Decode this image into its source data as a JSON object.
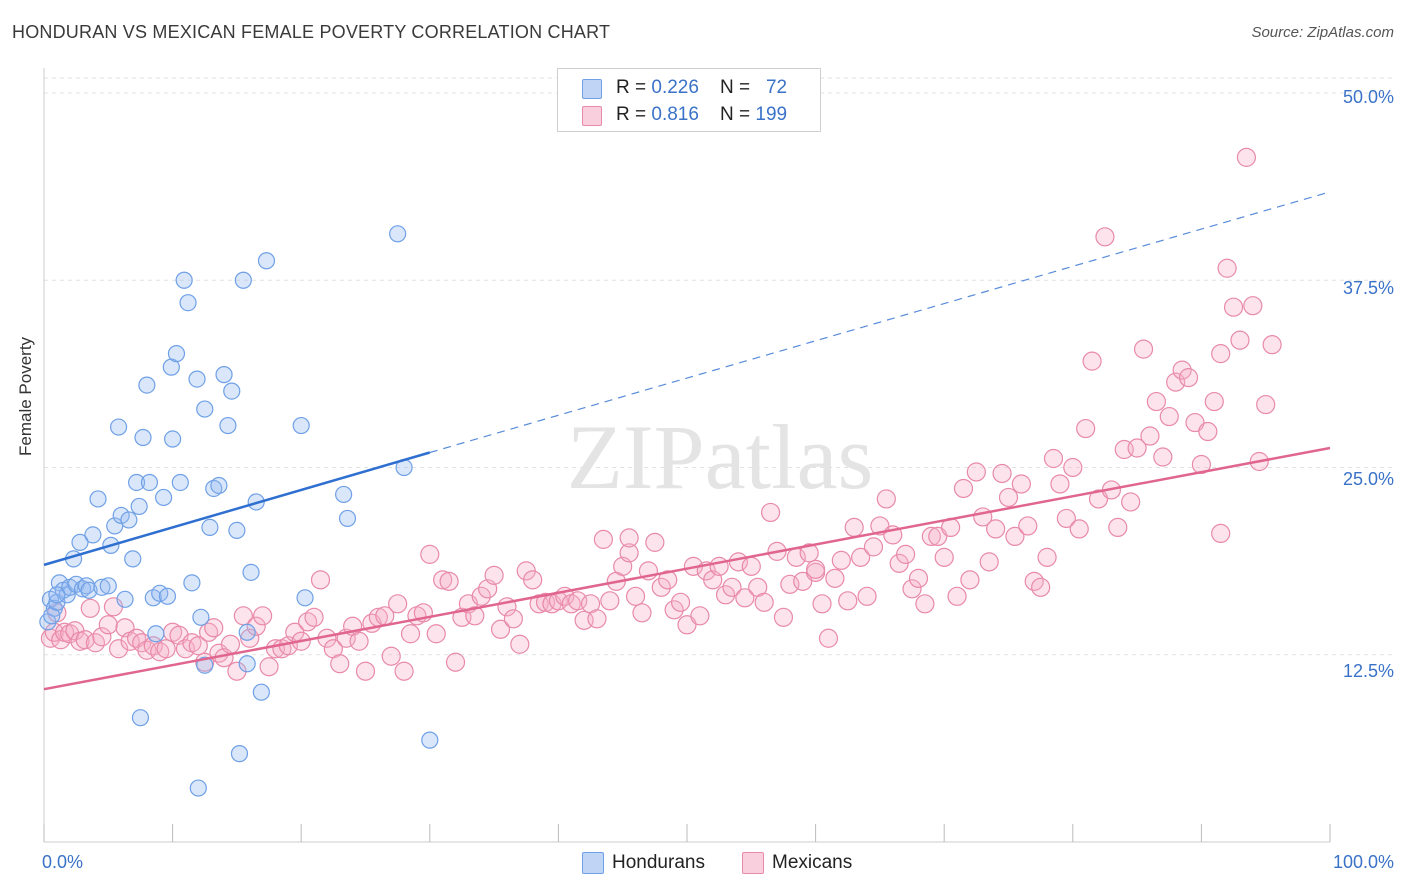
{
  "title": "HONDURAN VS MEXICAN FEMALE POVERTY CORRELATION CHART",
  "source": "Source: ZipAtlas.com",
  "watermark": "ZIPatlas",
  "colors": {
    "blue": "#6fa0e6",
    "blue_fill": "rgba(150,185,240,0.35)",
    "blue_line": "#2f6fd0",
    "pink": "#e88aa8",
    "pink_fill": "rgba(245,175,200,0.35)",
    "pink_line": "#e0668f",
    "tick_text": "#3a72c8"
  },
  "legend": {
    "rows": [
      {
        "r_label": "R = ",
        "r_value": "0.226",
        "n_label": "N = ",
        "n_value": "72",
        "series": "Hondurans"
      },
      {
        "r_label": "R = ",
        "r_value": "0.816",
        "n_label": "N = ",
        "n_value": "199",
        "series": "Mexicans"
      }
    ]
  },
  "bottom_legend": [
    "Hondurans",
    "Mexicans"
  ],
  "chart_data": {
    "type": "scatter",
    "title": "HONDURAN VS MEXICAN FEMALE POVERTY CORRELATION CHART",
    "xlabel": "",
    "ylabel": "Female Poverty",
    "xlim": [
      0,
      100
    ],
    "ylim": [
      0,
      51
    ],
    "x_tick_labels": [
      "0.0%",
      "100.0%"
    ],
    "y_ticks": [
      12.5,
      25.0,
      37.5,
      50.0
    ],
    "y_tick_labels": [
      "12.5%",
      "25.0%",
      "37.5%",
      "50.0%"
    ],
    "grid": true,
    "legend_placement": "top-center",
    "series": [
      {
        "name": "Hondurans",
        "r": 0.226,
        "n": 72,
        "trend": {
          "x0": 0,
          "y0": 18.5,
          "x1": 30,
          "y1": 26.0,
          "dash_to_x": 100,
          "dash_to_y": 43.4
        },
        "points": [
          [
            0.3,
            14.7
          ],
          [
            0.5,
            16.2
          ],
          [
            0.8,
            15.6
          ],
          [
            0.6,
            15.1
          ],
          [
            1.0,
            16.0
          ],
          [
            1.2,
            17.3
          ],
          [
            1.5,
            16.8
          ],
          [
            1.8,
            16.5
          ],
          [
            2.0,
            17.0
          ],
          [
            2.3,
            18.9
          ],
          [
            2.5,
            17.2
          ],
          [
            2.8,
            20.0
          ],
          [
            3.0,
            16.9
          ],
          [
            3.3,
            17.1
          ],
          [
            3.5,
            16.8
          ],
          [
            3.8,
            20.5
          ],
          [
            4.2,
            22.9
          ],
          [
            4.5,
            17.0
          ],
          [
            5.0,
            17.1
          ],
          [
            5.2,
            19.8
          ],
          [
            5.5,
            21.1
          ],
          [
            5.8,
            27.7
          ],
          [
            6.0,
            21.8
          ],
          [
            6.3,
            16.2
          ],
          [
            6.6,
            21.5
          ],
          [
            6.9,
            18.9
          ],
          [
            7.2,
            24.0
          ],
          [
            7.4,
            22.4
          ],
          [
            7.7,
            27.0
          ],
          [
            8.0,
            30.5
          ],
          [
            8.2,
            24.0
          ],
          [
            8.5,
            16.3
          ],
          [
            8.7,
            13.9
          ],
          [
            9.0,
            16.6
          ],
          [
            9.3,
            23.0
          ],
          [
            9.6,
            16.4
          ],
          [
            9.9,
            31.7
          ],
          [
            10.0,
            26.9
          ],
          [
            10.3,
            32.6
          ],
          [
            10.6,
            24.0
          ],
          [
            10.9,
            37.5
          ],
          [
            11.2,
            36.0
          ],
          [
            11.5,
            17.3
          ],
          [
            11.9,
            30.9
          ],
          [
            12.2,
            15.0
          ],
          [
            12.5,
            28.9
          ],
          [
            12.9,
            21.0
          ],
          [
            13.2,
            23.6
          ],
          [
            13.6,
            23.8
          ],
          [
            14.0,
            31.2
          ],
          [
            14.3,
            27.8
          ],
          [
            14.6,
            30.1
          ],
          [
            15.0,
            20.8
          ],
          [
            15.5,
            37.5
          ],
          [
            15.8,
            14.0
          ],
          [
            16.1,
            18.0
          ],
          [
            16.5,
            22.7
          ],
          [
            16.9,
            10.0
          ],
          [
            17.3,
            38.8
          ],
          [
            20.0,
            27.8
          ],
          [
            20.3,
            16.3
          ],
          [
            23.3,
            23.2
          ],
          [
            23.6,
            21.6
          ],
          [
            27.5,
            40.6
          ],
          [
            28.0,
            25.0
          ],
          [
            30.0,
            6.8
          ],
          [
            7.5,
            8.3
          ],
          [
            12.0,
            3.6
          ],
          [
            15.2,
            5.9
          ],
          [
            12.5,
            11.8
          ],
          [
            15.8,
            11.9
          ],
          [
            1.0,
            16.5
          ]
        ]
      },
      {
        "name": "Mexicans",
        "r": 0.816,
        "n": 199,
        "trend": {
          "x0": 0,
          "y0": 10.2,
          "x1": 100,
          "y1": 26.3
        },
        "points": [
          [
            0.5,
            13.6
          ],
          [
            0.8,
            14.0
          ],
          [
            1.0,
            15.3
          ],
          [
            1.3,
            13.5
          ],
          [
            1.6,
            14.0
          ],
          [
            2.0,
            13.9
          ],
          [
            2.4,
            14.1
          ],
          [
            2.8,
            13.4
          ],
          [
            3.2,
            13.5
          ],
          [
            3.6,
            15.6
          ],
          [
            4.0,
            13.3
          ],
          [
            4.5,
            13.7
          ],
          [
            5.0,
            14.5
          ],
          [
            5.4,
            15.7
          ],
          [
            5.8,
            12.9
          ],
          [
            6.3,
            14.3
          ],
          [
            6.7,
            13.4
          ],
          [
            7.2,
            13.6
          ],
          [
            7.6,
            13.3
          ],
          [
            8.0,
            12.8
          ],
          [
            8.5,
            13.1
          ],
          [
            9.0,
            12.7
          ],
          [
            9.5,
            12.9
          ],
          [
            10.0,
            14.0
          ],
          [
            10.5,
            13.8
          ],
          [
            11.0,
            12.9
          ],
          [
            11.5,
            13.3
          ],
          [
            12.0,
            13.1
          ],
          [
            12.5,
            12.0
          ],
          [
            12.8,
            14.0
          ],
          [
            13.2,
            14.3
          ],
          [
            13.6,
            12.6
          ],
          [
            14.0,
            12.3
          ],
          [
            14.5,
            13.2
          ],
          [
            15.0,
            11.4
          ],
          [
            15.5,
            15.1
          ],
          [
            16.0,
            13.6
          ],
          [
            16.5,
            14.4
          ],
          [
            17.0,
            15.1
          ],
          [
            17.5,
            11.7
          ],
          [
            18.0,
            12.9
          ],
          [
            18.5,
            12.9
          ],
          [
            19.0,
            13.1
          ],
          [
            19.5,
            14.0
          ],
          [
            20.0,
            13.4
          ],
          [
            20.5,
            14.7
          ],
          [
            21.0,
            15.0
          ],
          [
            21.5,
            17.5
          ],
          [
            22.0,
            13.6
          ],
          [
            22.5,
            12.9
          ],
          [
            23.0,
            11.9
          ],
          [
            23.5,
            13.6
          ],
          [
            24.0,
            14.4
          ],
          [
            24.5,
            13.4
          ],
          [
            25.0,
            11.4
          ],
          [
            25.5,
            14.6
          ],
          [
            26.0,
            15.0
          ],
          [
            26.5,
            15.1
          ],
          [
            27.0,
            12.4
          ],
          [
            27.5,
            15.9
          ],
          [
            28.0,
            11.4
          ],
          [
            28.5,
            13.9
          ],
          [
            29.0,
            15.1
          ],
          [
            29.5,
            15.3
          ],
          [
            30.0,
            19.2
          ],
          [
            30.5,
            13.9
          ],
          [
            31.0,
            17.5
          ],
          [
            31.5,
            17.4
          ],
          [
            32.0,
            12.0
          ],
          [
            32.5,
            15.0
          ],
          [
            33.0,
            15.9
          ],
          [
            33.5,
            15.1
          ],
          [
            34.0,
            16.4
          ],
          [
            34.5,
            16.9
          ],
          [
            35.0,
            17.8
          ],
          [
            35.5,
            14.2
          ],
          [
            36.0,
            15.7
          ],
          [
            36.5,
            14.9
          ],
          [
            37.0,
            13.2
          ],
          [
            37.5,
            18.1
          ],
          [
            38.0,
            17.5
          ],
          [
            38.5,
            15.9
          ],
          [
            39.0,
            16.0
          ],
          [
            39.5,
            15.9
          ],
          [
            40.0,
            16.1
          ],
          [
            40.5,
            16.4
          ],
          [
            41.0,
            15.9
          ],
          [
            41.5,
            16.1
          ],
          [
            42.0,
            14.8
          ],
          [
            42.5,
            15.9
          ],
          [
            43.0,
            14.9
          ],
          [
            43.5,
            20.2
          ],
          [
            44.0,
            16.1
          ],
          [
            44.5,
            17.4
          ],
          [
            45.0,
            18.4
          ],
          [
            45.5,
            19.3
          ],
          [
            46.0,
            16.4
          ],
          [
            46.5,
            15.3
          ],
          [
            47.0,
            18.1
          ],
          [
            47.5,
            20.0
          ],
          [
            48.0,
            17.0
          ],
          [
            48.5,
            17.5
          ],
          [
            49.0,
            15.5
          ],
          [
            49.5,
            16.0
          ],
          [
            50.0,
            14.5
          ],
          [
            50.5,
            18.4
          ],
          [
            51.0,
            15.1
          ],
          [
            51.5,
            18.1
          ],
          [
            52.0,
            17.5
          ],
          [
            52.5,
            18.4
          ],
          [
            53.0,
            16.5
          ],
          [
            53.5,
            17.0
          ],
          [
            54.0,
            18.7
          ],
          [
            54.5,
            16.3
          ],
          [
            55.0,
            18.4
          ],
          [
            55.5,
            17.0
          ],
          [
            56.0,
            16.0
          ],
          [
            56.5,
            22.0
          ],
          [
            57.0,
            19.4
          ],
          [
            57.5,
            15.0
          ],
          [
            58.0,
            17.2
          ],
          [
            58.5,
            19.0
          ],
          [
            59.0,
            17.4
          ],
          [
            59.5,
            19.3
          ],
          [
            60.0,
            18.0
          ],
          [
            60.5,
            15.9
          ],
          [
            61.0,
            13.6
          ],
          [
            61.5,
            17.6
          ],
          [
            62.0,
            18.8
          ],
          [
            62.5,
            16.1
          ],
          [
            63.0,
            21.0
          ],
          [
            63.5,
            19.0
          ],
          [
            64.0,
            16.4
          ],
          [
            64.5,
            19.7
          ],
          [
            65.0,
            21.1
          ],
          [
            65.5,
            22.9
          ],
          [
            66.0,
            20.5
          ],
          [
            66.5,
            18.6
          ],
          [
            67.0,
            19.2
          ],
          [
            67.5,
            16.9
          ],
          [
            68.0,
            17.6
          ],
          [
            68.5,
            15.9
          ],
          [
            69.0,
            20.4
          ],
          [
            69.5,
            20.4
          ],
          [
            70.0,
            19.0
          ],
          [
            70.5,
            21.0
          ],
          [
            71.0,
            16.4
          ],
          [
            71.5,
            23.6
          ],
          [
            72.0,
            17.5
          ],
          [
            72.5,
            24.7
          ],
          [
            73.0,
            21.7
          ],
          [
            73.5,
            18.7
          ],
          [
            74.0,
            20.9
          ],
          [
            74.5,
            24.6
          ],
          [
            75.0,
            23.0
          ],
          [
            75.5,
            20.4
          ],
          [
            76.0,
            23.9
          ],
          [
            76.5,
            21.1
          ],
          [
            77.0,
            17.4
          ],
          [
            77.5,
            17.0
          ],
          [
            78.0,
            19.0
          ],
          [
            78.5,
            25.6
          ],
          [
            79.0,
            23.9
          ],
          [
            79.5,
            21.6
          ],
          [
            80.0,
            25.0
          ],
          [
            80.5,
            20.9
          ],
          [
            81.0,
            27.6
          ],
          [
            81.5,
            32.1
          ],
          [
            82.0,
            22.9
          ],
          [
            82.5,
            40.4
          ],
          [
            83.0,
            23.5
          ],
          [
            83.5,
            21.0
          ],
          [
            84.0,
            26.2
          ],
          [
            84.5,
            22.7
          ],
          [
            85.0,
            26.3
          ],
          [
            85.5,
            32.9
          ],
          [
            86.0,
            27.1
          ],
          [
            86.5,
            29.4
          ],
          [
            87.0,
            25.7
          ],
          [
            87.5,
            28.4
          ],
          [
            88.0,
            30.7
          ],
          [
            88.5,
            31.5
          ],
          [
            89.0,
            31.0
          ],
          [
            89.5,
            28.0
          ],
          [
            90.0,
            25.2
          ],
          [
            90.5,
            27.4
          ],
          [
            91.0,
            29.4
          ],
          [
            91.5,
            32.6
          ],
          [
            92.0,
            38.3
          ],
          [
            92.5,
            35.7
          ],
          [
            93.0,
            33.5
          ],
          [
            93.5,
            45.7
          ],
          [
            94.0,
            35.8
          ],
          [
            94.5,
            25.4
          ],
          [
            95.0,
            29.2
          ],
          [
            95.5,
            33.2
          ],
          [
            91.5,
            20.6
          ],
          [
            45.5,
            20.3
          ],
          [
            60.0,
            18.2
          ]
        ]
      }
    ]
  }
}
